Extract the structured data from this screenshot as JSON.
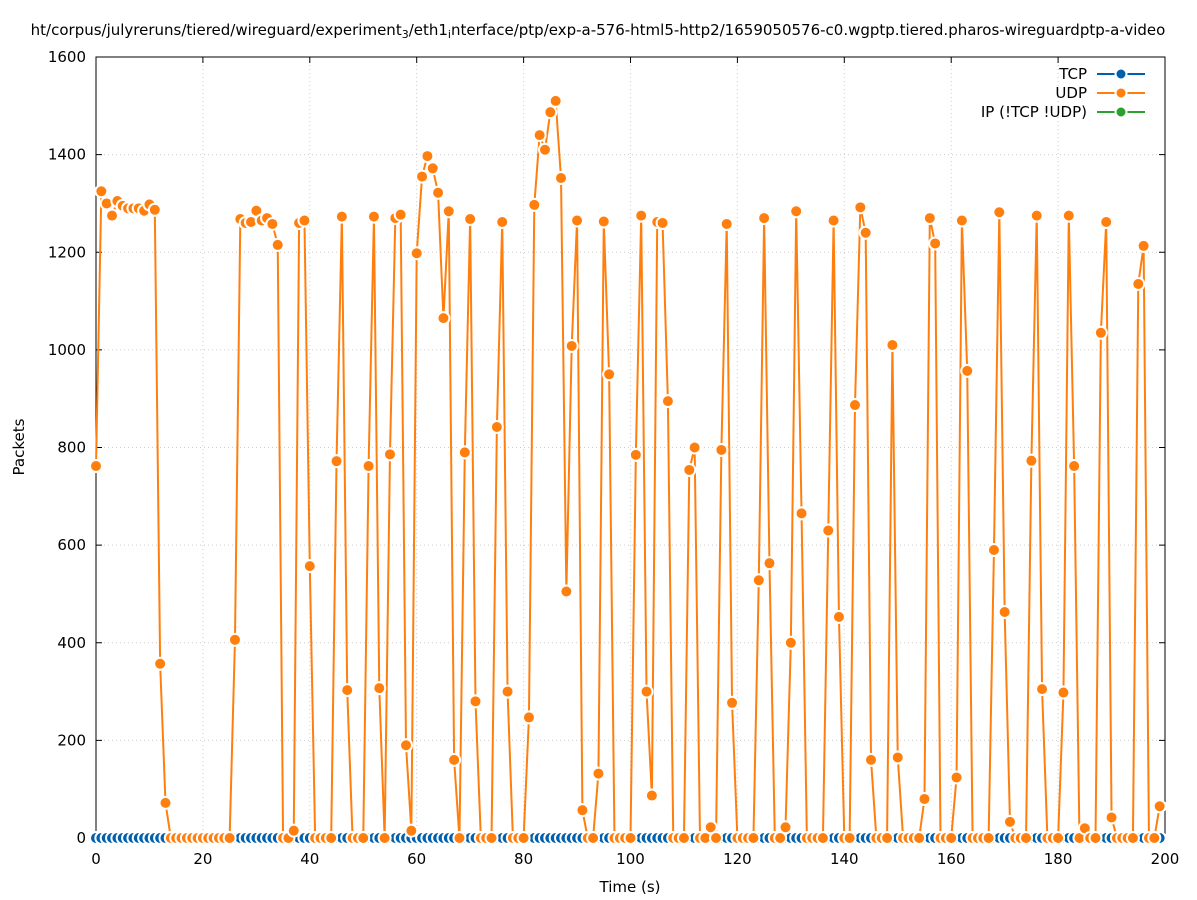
{
  "chart_data": {
    "type": "line",
    "title_parts": [
      {
        "text": "ht/corpus/julyreruns/tiered/wireguard/experiment",
        "sub": false
      },
      {
        "text": "3",
        "sub": true
      },
      {
        "text": "/eth1",
        "sub": false
      },
      {
        "text": "i",
        "sub": true
      },
      {
        "text": "nterface/ptp/exp-a-576-html5-http2/1659050576-c0.wgptp.tiered.pharos-wireguardptp-a-video",
        "sub": false
      }
    ],
    "xlabel": "Time (s)",
    "ylabel": "Packets",
    "xlim": [
      0,
      200
    ],
    "ylim": [
      0,
      1600
    ],
    "xticks": [
      "0",
      "20",
      "40",
      "60",
      "80",
      "100",
      "120",
      "140",
      "160",
      "180",
      "200"
    ],
    "yticks": [
      "0",
      "200",
      "400",
      "600",
      "800",
      "1000",
      "1200",
      "1400",
      "1600"
    ],
    "grid": true,
    "legend_position": "top-right",
    "x_start": 0,
    "x_step": 1,
    "series": [
      {
        "name": "TCP",
        "color": "#0060ad",
        "values": "zeros"
      },
      {
        "name": "UDP",
        "color": "#ff7f0e",
        "values": [
          762,
          1325,
          1300,
          1275,
          1305,
          1295,
          1290,
          1290,
          1290,
          1285,
          1298,
          1287,
          357,
          72,
          0,
          0,
          0,
          0,
          0,
          0,
          0,
          0,
          0,
          0,
          0,
          0,
          406,
          1268,
          1260,
          1262,
          1285,
          1265,
          1270,
          1258,
          1215,
          0,
          0,
          15,
          1260,
          1265,
          557,
          0,
          0,
          0,
          0,
          772,
          1273,
          303,
          0,
          0,
          0,
          762,
          1273,
          307,
          0,
          786,
          1270,
          1277,
          190,
          15,
          1198,
          1355,
          1397,
          1372,
          1322,
          1065,
          1284,
          160,
          0,
          790,
          1268,
          280,
          0,
          0,
          0,
          842,
          1262,
          300,
          0,
          0,
          0,
          247,
          1297,
          1440,
          1410,
          1487,
          1510,
          1352,
          505,
          1008,
          1265,
          57,
          0,
          0,
          132,
          1263,
          950,
          0,
          0,
          0,
          0,
          785,
          1275,
          300,
          87,
          1262,
          1260,
          895,
          0,
          0,
          0,
          754,
          800,
          0,
          0,
          22,
          0,
          795,
          1258,
          277,
          0,
          0,
          0,
          0,
          528,
          1270,
          563,
          0,
          0,
          22,
          400,
          1284,
          665,
          0,
          0,
          0,
          0,
          630,
          1265,
          453,
          0,
          0,
          887,
          1292,
          1240,
          160,
          0,
          0,
          0,
          1010,
          165,
          0,
          0,
          0,
          0,
          80,
          1270,
          1218,
          0,
          0,
          0,
          124,
          1265,
          957,
          0,
          0,
          0,
          0,
          590,
          1282,
          463,
          33,
          0,
          0,
          0,
          773,
          1275,
          305,
          0,
          0,
          0,
          298,
          1275,
          762,
          0,
          20,
          0,
          0,
          1035,
          1262,
          42,
          0,
          0,
          0,
          0,
          1135,
          1213,
          0,
          0,
          65
        ]
      },
      {
        "name": "IP (!TCP  !UDP)",
        "color": "#2ca02c",
        "values": "zeros"
      }
    ]
  }
}
